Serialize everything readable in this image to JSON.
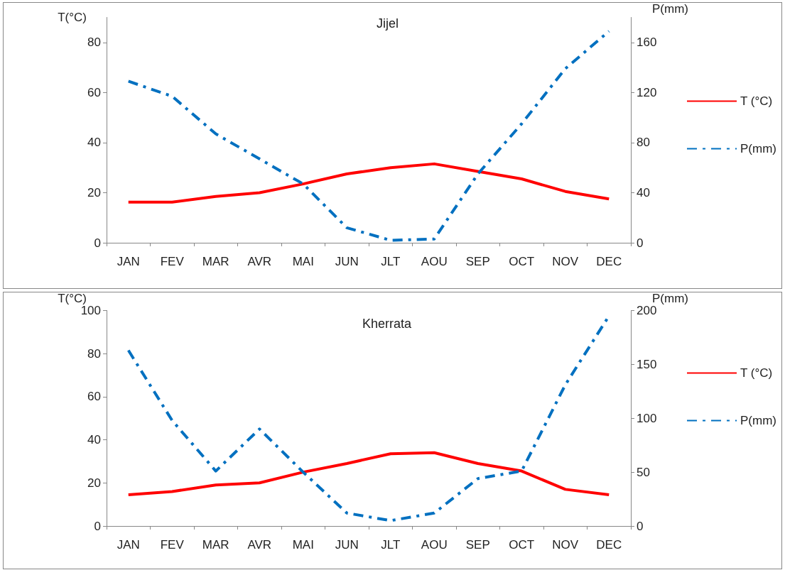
{
  "chart_data": [
    {
      "type": "line",
      "title": "Jijel",
      "ylabel": "T(°C)",
      "y2label": "P(mm)",
      "categories": [
        "JAN",
        "FEV",
        "MAR",
        "AVR",
        "MAI",
        "JUN",
        "JLT",
        "AOU",
        "SEP",
        "OCT",
        "NOV",
        "DEC"
      ],
      "series": [
        {
          "name": "T (°C)",
          "color": "#ff0000",
          "line_style": "solid",
          "values": [
            16.2,
            16.2,
            18.5,
            20,
            23.5,
            27.5,
            30,
            31.5,
            28.5,
            25.5,
            20.5,
            17.5
          ]
        },
        {
          "name": "P(mm)",
          "color": "#0070c0",
          "line_style": "dashed",
          "axis": "y2",
          "values": [
            129,
            117,
            87,
            67,
            47,
            12,
            2,
            3,
            55,
            95,
            139,
            169
          ]
        }
      ],
      "ylim": [
        0,
        90
      ],
      "yticks": [
        0,
        20,
        40,
        60,
        80
      ],
      "y2lim": [
        0,
        180
      ],
      "y2ticks": [
        0,
        40,
        80,
        120,
        160
      ],
      "grid": false,
      "legend": "right",
      "marker": "none"
    },
    {
      "type": "line",
      "title": "Kherrata",
      "ylabel": "T(°C)",
      "y2label": "P(mm)",
      "categories": [
        "JAN",
        "FEV",
        "MAR",
        "AVR",
        "MAI",
        "JUN",
        "JLT",
        "AOU",
        "SEP",
        "OCT",
        "NOV",
        "DEC"
      ],
      "series": [
        {
          "name": "T (°C)",
          "color": "#ff0000",
          "line_style": "solid",
          "values": [
            14.5,
            16,
            19,
            20,
            25,
            29,
            33.5,
            34,
            29,
            25.5,
            17,
            14.5
          ]
        },
        {
          "name": "P(mm)",
          "color": "#0070c0",
          "line_style": "dashed",
          "axis": "y2",
          "values": [
            163,
            98,
            51,
            90,
            50,
            12,
            5,
            12,
            44,
            51,
            131,
            195
          ]
        }
      ],
      "ylim": [
        0,
        100
      ],
      "yticks": [
        0,
        20,
        40,
        60,
        80,
        100
      ],
      "y2lim": [
        0,
        200
      ],
      "y2ticks": [
        0,
        50,
        100,
        150,
        200
      ],
      "grid": false,
      "legend": "right",
      "marker": "none"
    }
  ]
}
